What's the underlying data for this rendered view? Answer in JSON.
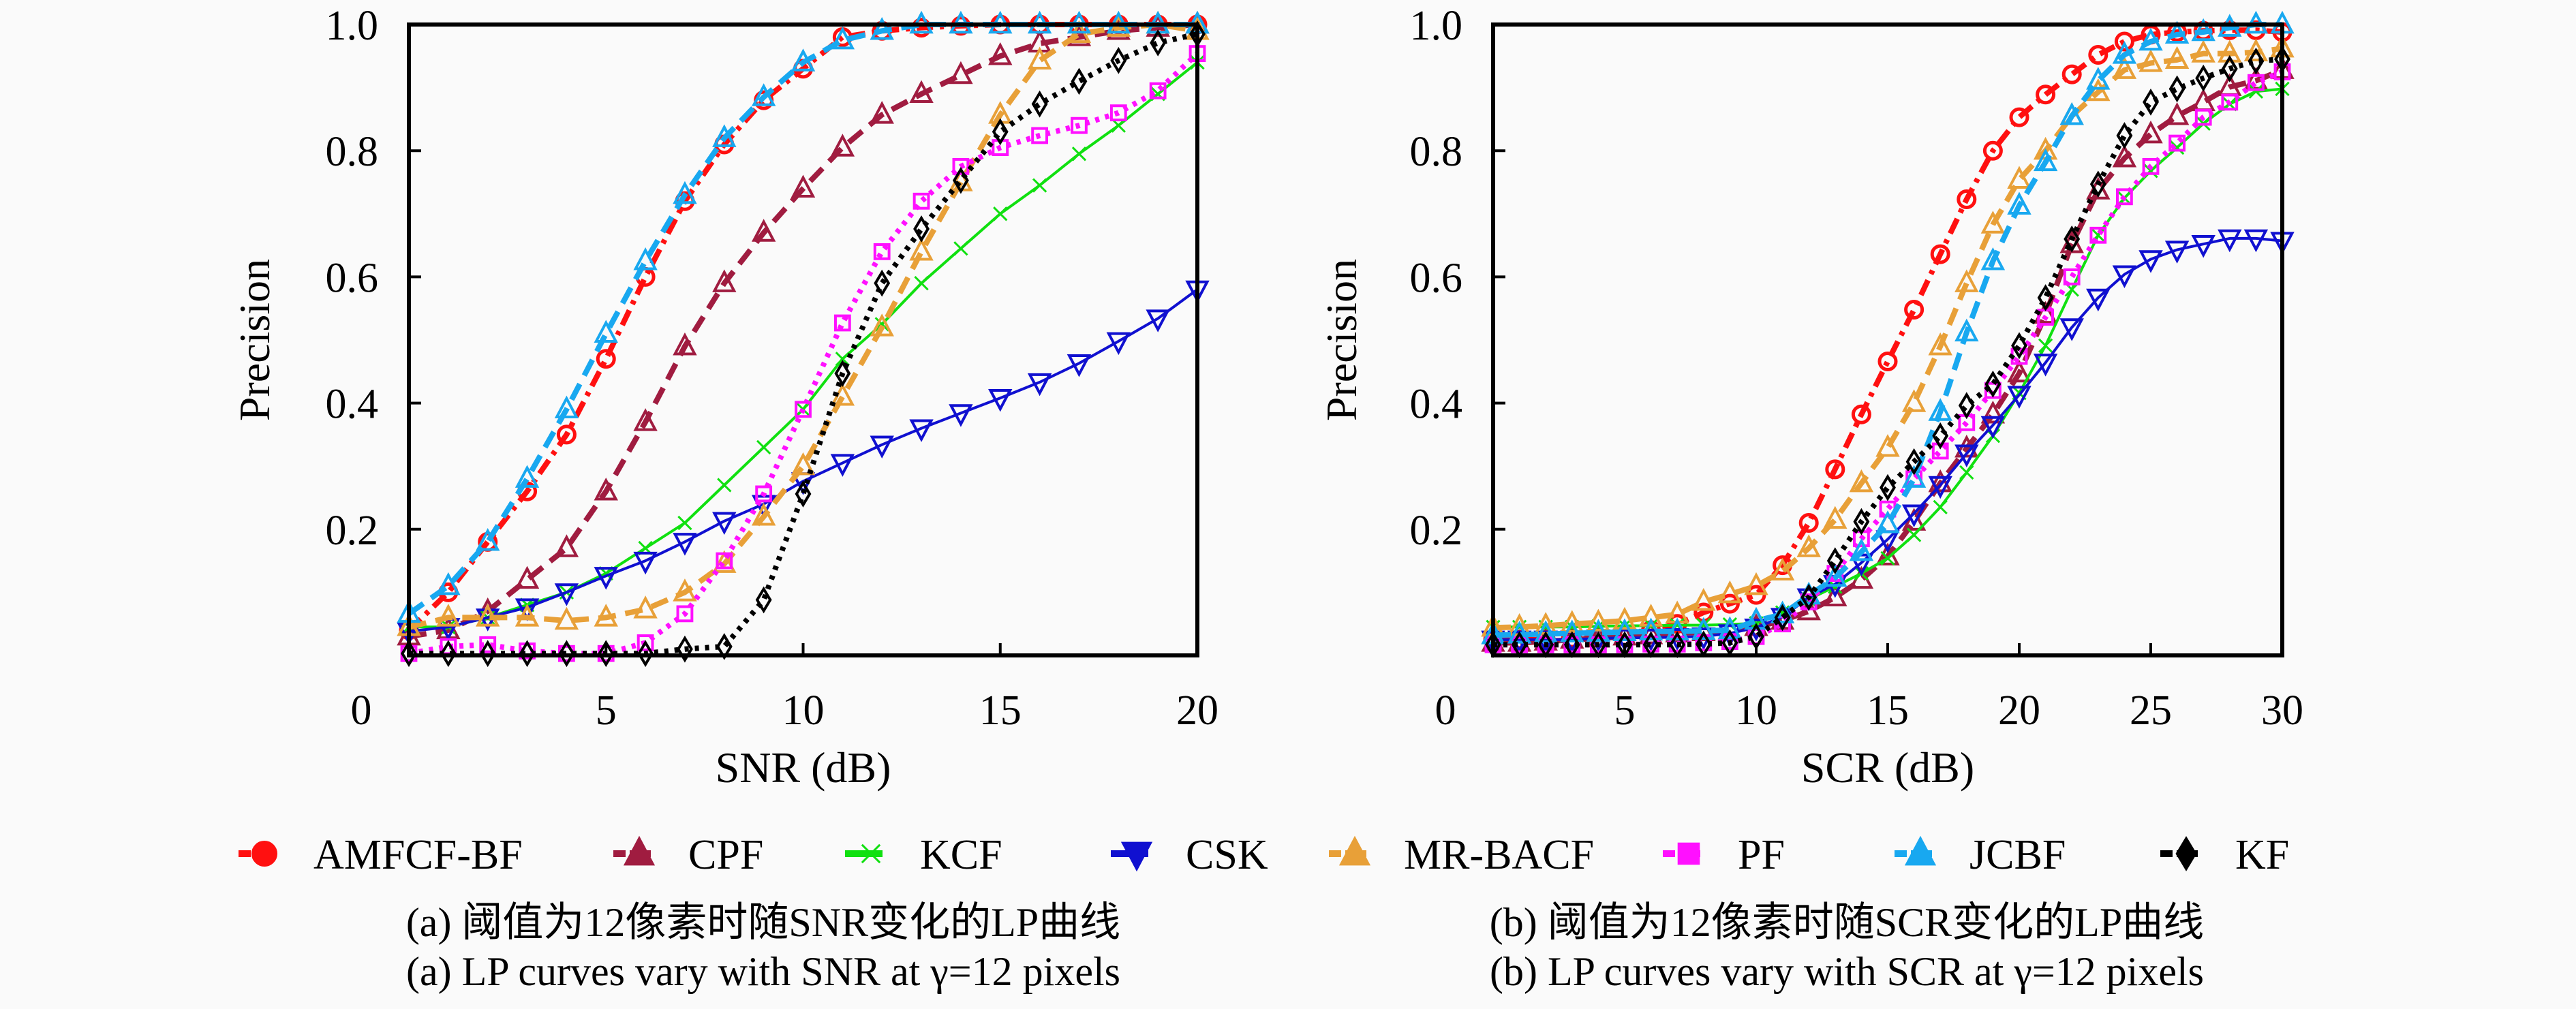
{
  "chart_data": [
    {
      "type": "line",
      "panel": "a",
      "xlabel": "SNR (dB)",
      "ylabel": "Precision",
      "xlim": [
        0,
        20
      ],
      "ylim": [
        0,
        1.0
      ],
      "xticks": [
        0,
        5,
        10,
        15,
        20
      ],
      "yticks": [
        0.2,
        0.4,
        0.6,
        0.8,
        1.0
      ],
      "ytick_labels": [
        "0.2",
        "0.4",
        "0.6",
        "0.8",
        "1.0"
      ],
      "grid": false,
      "x": [
        0,
        1,
        2,
        3,
        4,
        5,
        6,
        7,
        8,
        9,
        10,
        11,
        12,
        13,
        14,
        15,
        16,
        17,
        18,
        19,
        20
      ],
      "series": [
        {
          "name": "AMFCF-BF",
          "values": [
            0.04,
            0.1,
            0.18,
            0.26,
            0.35,
            0.47,
            0.6,
            0.72,
            0.81,
            0.88,
            0.93,
            0.98,
            0.99,
            0.995,
            0.998,
            1.0,
            1.0,
            1.0,
            1.0,
            1.0,
            1.0
          ]
        },
        {
          "name": "CPF",
          "values": [
            0.03,
            0.04,
            0.07,
            0.12,
            0.17,
            0.26,
            0.37,
            0.49,
            0.59,
            0.67,
            0.74,
            0.805,
            0.857,
            0.89,
            0.92,
            0.95,
            0.97,
            0.98,
            0.99,
            0.995,
            1.0
          ]
        },
        {
          "name": "KCF",
          "values": [
            0.045,
            0.045,
            0.06,
            0.08,
            0.1,
            0.13,
            0.17,
            0.21,
            0.27,
            0.33,
            0.39,
            0.47,
            0.525,
            0.59,
            0.645,
            0.7,
            0.745,
            0.795,
            0.84,
            0.89,
            0.94
          ]
        },
        {
          "name": "CSK",
          "values": [
            0.038,
            0.045,
            0.06,
            0.076,
            0.1,
            0.126,
            0.15,
            0.18,
            0.213,
            0.24,
            0.276,
            0.305,
            0.334,
            0.36,
            0.384,
            0.408,
            0.433,
            0.463,
            0.498,
            0.534,
            0.58
          ]
        },
        {
          "name": "MR-BACF",
          "values": [
            0.045,
            0.06,
            0.06,
            0.06,
            0.055,
            0.06,
            0.073,
            0.1,
            0.145,
            0.22,
            0.3,
            0.41,
            0.52,
            0.64,
            0.75,
            0.857,
            0.943,
            0.985,
            0.995,
            1.0,
            0.99
          ]
        },
        {
          "name": "PF",
          "values": [
            0.003,
            0.014,
            0.017,
            0.007,
            0.003,
            0.003,
            0.02,
            0.066,
            0.15,
            0.256,
            0.39,
            0.527,
            0.64,
            0.72,
            0.775,
            0.805,
            0.824,
            0.84,
            0.86,
            0.895,
            0.954
          ]
        },
        {
          "name": "JCBF",
          "values": [
            0.066,
            0.11,
            0.18,
            0.28,
            0.39,
            0.51,
            0.625,
            0.73,
            0.82,
            0.885,
            0.94,
            0.975,
            0.99,
            1.0,
            1.0,
            1.0,
            1.0,
            1.0,
            1.0,
            1.0,
            1.0
          ]
        },
        {
          "name": "KF",
          "values": [
            0.003,
            0.003,
            0.003,
            0.003,
            0.003,
            0.003,
            0.003,
            0.01,
            0.014,
            0.088,
            0.256,
            0.447,
            0.59,
            0.676,
            0.753,
            0.83,
            0.874,
            0.91,
            0.943,
            0.971,
            0.985
          ]
        }
      ]
    },
    {
      "type": "line",
      "panel": "b",
      "xlabel": "SCR (dB)",
      "ylabel": "Precision",
      "xlim": [
        0,
        30
      ],
      "ylim": [
        0,
        1.0
      ],
      "xticks": [
        0,
        5,
        10,
        15,
        20,
        25,
        30
      ],
      "yticks": [
        0.2,
        0.4,
        0.6,
        0.8,
        1.0
      ],
      "ytick_labels": [
        "0.2",
        "0.4",
        "0.6",
        "0.8",
        "1.0"
      ],
      "grid": false,
      "x": [
        0,
        1,
        2,
        3,
        4,
        5,
        6,
        7,
        8,
        9,
        10,
        11,
        12,
        13,
        14,
        15,
        16,
        17,
        18,
        19,
        20,
        21,
        22,
        23,
        24,
        25,
        26,
        27,
        28,
        29,
        30
      ],
      "series": [
        {
          "name": "AMFCF-BF",
          "values": [
            0.025,
            0.025,
            0.025,
            0.027,
            0.028,
            0.03,
            0.04,
            0.05,
            0.068,
            0.082,
            0.096,
            0.143,
            0.21,
            0.295,
            0.382,
            0.466,
            0.548,
            0.636,
            0.723,
            0.8,
            0.853,
            0.889,
            0.921,
            0.952,
            0.973,
            0.984,
            0.988,
            0.99,
            0.991,
            0.991,
            0.988
          ]
        },
        {
          "name": "CPF",
          "values": [
            0.02,
            0.02,
            0.022,
            0.025,
            0.027,
            0.03,
            0.032,
            0.035,
            0.037,
            0.04,
            0.045,
            0.055,
            0.07,
            0.092,
            0.12,
            0.157,
            0.212,
            0.273,
            0.328,
            0.382,
            0.447,
            0.54,
            0.652,
            0.737,
            0.788,
            0.826,
            0.855,
            0.877,
            0.901,
            0.911,
            0.928
          ]
        },
        {
          "name": "KCF",
          "values": [
            0.045,
            0.045,
            0.045,
            0.045,
            0.046,
            0.047,
            0.047,
            0.048,
            0.048,
            0.049,
            0.051,
            0.068,
            0.089,
            0.109,
            0.13,
            0.154,
            0.191,
            0.235,
            0.29,
            0.348,
            0.416,
            0.491,
            0.58,
            0.666,
            0.725,
            0.768,
            0.805,
            0.843,
            0.874,
            0.894,
            0.898
          ]
        },
        {
          "name": "CSK",
          "values": [
            0.025,
            0.025,
            0.025,
            0.025,
            0.027,
            0.028,
            0.028,
            0.029,
            0.03,
            0.035,
            0.044,
            0.061,
            0.092,
            0.113,
            0.147,
            0.184,
            0.225,
            0.27,
            0.32,
            0.365,
            0.413,
            0.464,
            0.52,
            0.567,
            0.604,
            0.628,
            0.643,
            0.652,
            0.661,
            0.661,
            0.657
          ]
        },
        {
          "name": "MR-BACF",
          "values": [
            0.044,
            0.045,
            0.047,
            0.05,
            0.052,
            0.055,
            0.06,
            0.065,
            0.085,
            0.097,
            0.11,
            0.133,
            0.17,
            0.215,
            0.273,
            0.329,
            0.4,
            0.49,
            0.59,
            0.683,
            0.754,
            0.8,
            0.855,
            0.893,
            0.928,
            0.939,
            0.944,
            0.954,
            0.954,
            0.956,
            0.962
          ]
        },
        {
          "name": "PF",
          "values": [
            0.017,
            0.017,
            0.017,
            0.017,
            0.017,
            0.017,
            0.018,
            0.018,
            0.02,
            0.022,
            0.03,
            0.05,
            0.085,
            0.13,
            0.185,
            0.232,
            0.28,
            0.324,
            0.369,
            0.42,
            0.474,
            0.536,
            0.6,
            0.666,
            0.727,
            0.775,
            0.812,
            0.853,
            0.877,
            0.908,
            0.925
          ]
        },
        {
          "name": "JCBF",
          "values": [
            0.032,
            0.033,
            0.034,
            0.035,
            0.036,
            0.037,
            0.038,
            0.038,
            0.039,
            0.04,
            0.055,
            0.065,
            0.095,
            0.123,
            0.164,
            0.208,
            0.28,
            0.386,
            0.512,
            0.625,
            0.713,
            0.782,
            0.855,
            0.911,
            0.952,
            0.973,
            0.984,
            0.988,
            0.995,
            1.0,
            1.0
          ]
        },
        {
          "name": "KF",
          "values": [
            0.017,
            0.017,
            0.017,
            0.017,
            0.017,
            0.017,
            0.017,
            0.017,
            0.018,
            0.02,
            0.03,
            0.06,
            0.092,
            0.15,
            0.212,
            0.266,
            0.307,
            0.348,
            0.396,
            0.43,
            0.491,
            0.567,
            0.66,
            0.747,
            0.824,
            0.877,
            0.898,
            0.915,
            0.93,
            0.942,
            0.945
          ]
        }
      ]
    }
  ],
  "legend": {
    "placement": "bottom",
    "entries": [
      {
        "name": "AMFCF-BF",
        "color": "#ff1010",
        "marker": "circle",
        "dash": "dashdot"
      },
      {
        "name": "CPF",
        "color": "#a01c40",
        "marker": "triangle-up",
        "dash": "dashed"
      },
      {
        "name": "KCF",
        "color": "#10e010",
        "marker": "x",
        "dash": "solid"
      },
      {
        "name": "CSK",
        "color": "#1010d0",
        "marker": "triangle-down",
        "dash": "solid"
      },
      {
        "name": "MR-BACF",
        "color": "#e8a038",
        "marker": "triangle-up",
        "dash": "dashed"
      },
      {
        "name": "PF",
        "color": "#ff10ff",
        "marker": "square",
        "dash": "dotted"
      },
      {
        "name": "JCBF",
        "color": "#18a8f0",
        "marker": "triangle-up",
        "dash": "dashed"
      },
      {
        "name": "KF",
        "color": "#000000",
        "marker": "diamond",
        "dash": "dotted"
      }
    ]
  },
  "captions": {
    "a_cn": "(a) 阈值为12像素时随SNR变化的LP曲线",
    "a_en": "(a) LP curves vary with SNR at γ=12 pixels",
    "b_cn": "(b) 阈值为12像素时随SCR变化的LP曲线",
    "b_en": "(b) LP curves vary with SCR at γ=12 pixels"
  }
}
